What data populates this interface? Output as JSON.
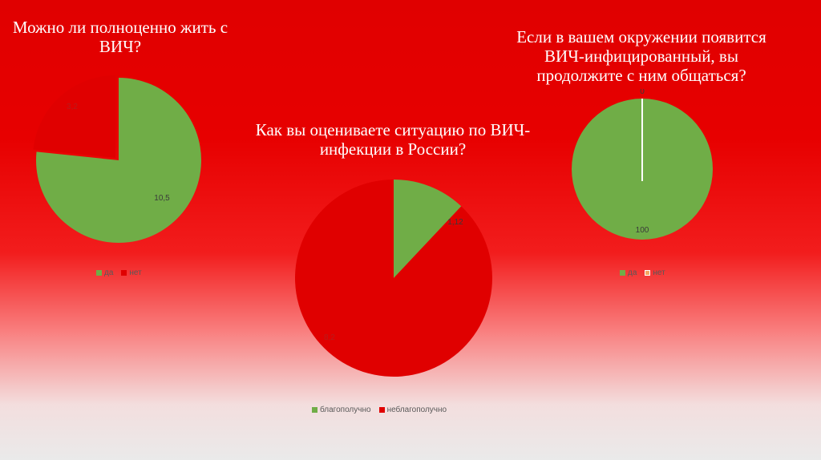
{
  "colors": {
    "green": "#70ad47",
    "red": "#e00000",
    "legend_text": "#595959",
    "title_text": "#ffffff"
  },
  "chart_data": [
    {
      "type": "pie",
      "title": "Можно ли полноценно жить с ВИЧ?",
      "categories": [
        "да",
        "нет"
      ],
      "values": [
        10.5,
        3.2
      ],
      "value_labels": [
        "10,5",
        "3,2"
      ],
      "colors": [
        "#70ad47",
        "#e00000"
      ],
      "legend": "bottom"
    },
    {
      "type": "pie",
      "title": "Как вы оцениваете ситуацию по ВИЧ-инфекции в России?",
      "categories": [
        "благополучно",
        "неблагополучно"
      ],
      "values": [
        1.12,
        8.2
      ],
      "value_labels": [
        "1,12",
        "8,2"
      ],
      "colors": [
        "#70ad47",
        "#e00000"
      ],
      "legend": "bottom"
    },
    {
      "type": "pie",
      "title": "Если в вашем окружении появится ВИЧ-инфицированный, вы продолжите с ним общаться?",
      "categories": [
        "да",
        "нет"
      ],
      "values": [
        100,
        0
      ],
      "value_labels": [
        "100",
        "0"
      ],
      "colors": [
        "#70ad47",
        "#f4a460"
      ],
      "legend": "bottom"
    }
  ]
}
